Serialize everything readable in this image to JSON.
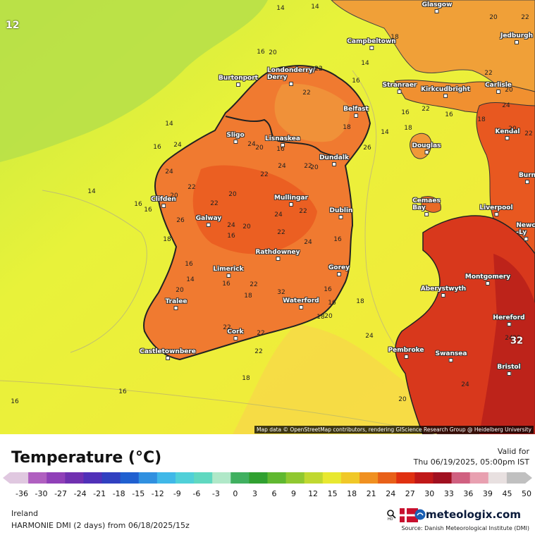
{
  "map": {
    "corner_label": "12",
    "attribution": "Map data © OpenStreetMap contributors, rendering GIScience Research Group @ Heidelberg University",
    "cities": [
      {
        "name": "Glasgow"
      },
      {
        "name": "Jedburgh"
      },
      {
        "name": "Campbeltown"
      },
      {
        "name": "Londonderry/\nDerry"
      },
      {
        "name": "Burtonport"
      },
      {
        "name": "Stranraer"
      },
      {
        "name": "Kirkcudbright"
      },
      {
        "name": "Carlisle"
      },
      {
        "name": "Belfast"
      },
      {
        "name": "Kendal"
      },
      {
        "name": "Sligo"
      },
      {
        "name": "Lisnaskea"
      },
      {
        "name": "Douglas"
      },
      {
        "name": "Dundalk"
      },
      {
        "name": "Burn"
      },
      {
        "name": "Clifden"
      },
      {
        "name": "Mullingar"
      },
      {
        "name": "Cemaes\nBay"
      },
      {
        "name": "Liverpool"
      },
      {
        "name": "Galway"
      },
      {
        "name": "Dublin"
      },
      {
        "name": "Newc\n-Ly"
      },
      {
        "name": "Rathdowney"
      },
      {
        "name": "Limerick"
      },
      {
        "name": "Gorey"
      },
      {
        "name": "Montgomery"
      },
      {
        "name": "Aberystwyth"
      },
      {
        "name": "Tralee"
      },
      {
        "name": "Waterford"
      },
      {
        "name": "Hereford"
      },
      {
        "name": "Cork"
      },
      {
        "name": "Castletownbere"
      },
      {
        "name": "Pembroke"
      },
      {
        "name": "Swansea"
      },
      {
        "name": "Bristol"
      }
    ],
    "isotherms": [
      "14",
      "14",
      "20",
      "22",
      "16",
      "20",
      "22",
      "22",
      "20",
      "24",
      "14",
      "16",
      "22",
      "18",
      "22",
      "16",
      "22",
      "14",
      "18",
      "16",
      "18",
      "20",
      "22",
      "14",
      "16",
      "24",
      "24",
      "20",
      "24",
      "16",
      "22",
      "20",
      "18",
      "26",
      "24",
      "20",
      "22",
      "20",
      "14",
      "16",
      "26",
      "18",
      "16",
      "16",
      "16",
      "20",
      "22",
      "24",
      "22",
      "24",
      "22",
      "22",
      "24",
      "16",
      "20",
      "14",
      "16",
      "22",
      "18",
      "32",
      "16",
      "16",
      "18",
      "20",
      "18",
      "22",
      "22",
      "22",
      "18",
      "16",
      "16",
      "24",
      "20",
      "24",
      "24",
      "22"
    ],
    "max_marker": "32"
  },
  "legend": {
    "title": "Temperature (°C)",
    "valid_label": "Valid for",
    "valid_time": "Thu 06/19/2025, 05:00pm IST",
    "ticks": [
      "-36",
      "-30",
      "-27",
      "-24",
      "-21",
      "-18",
      "-15",
      "-12",
      "-9",
      "-6",
      "-3",
      "0",
      "3",
      "6",
      "9",
      "12",
      "15",
      "18",
      "21",
      "24",
      "27",
      "30",
      "33",
      "36",
      "39",
      "45",
      "50"
    ],
    "colors": [
      "#e0c8e0",
      "#b060c0",
      "#9040b8",
      "#7030b0",
      "#5030b8",
      "#3040c0",
      "#2060d0",
      "#3090e0",
      "#40b8e8",
      "#50d0d8",
      "#60d8c0",
      "#b0e8c8",
      "#40b060",
      "#30a030",
      "#60b830",
      "#90c830",
      "#c0d830",
      "#e8e830",
      "#f0c828",
      "#f09020",
      "#e86018",
      "#e03010",
      "#c01818",
      "#a01020",
      "#d06080",
      "#e8a0b0",
      "#e8e0e0",
      "#c0c0c0"
    ],
    "region": "Ireland",
    "model": "HARMONIE DMI (2 days)  from  06/18/2025/15z",
    "brand": "meteologix.com",
    "source": "Source: Danish Meteorological Institute (DMI)"
  }
}
